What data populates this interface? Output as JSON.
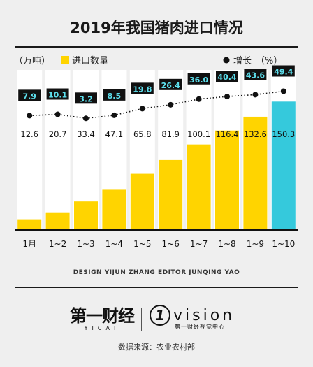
{
  "title": "2019年我国猪肉进口情况",
  "chart_data": {
    "type": "bar",
    "categories": [
      "1月",
      "1~2",
      "1~3",
      "1~4",
      "1~5",
      "1~6",
      "1~7",
      "1~8",
      "1~9",
      "1~10"
    ],
    "series": [
      {
        "name": "进口数量",
        "values": [
          12.6,
          20.7,
          33.4,
          47.1,
          65.8,
          81.9,
          100.1,
          116.4,
          132.6,
          150.3
        ],
        "unit": "（万吨）"
      },
      {
        "name": "增长",
        "values": [
          7.9,
          10.1,
          3.2,
          8.5,
          19.8,
          26.4,
          36.0,
          40.4,
          43.6,
          49.4
        ],
        "unit": "（%）"
      }
    ],
    "value_labels": [
      "12.6",
      "20.7",
      "33.4",
      "47.1",
      "65.8",
      "81.9",
      "100.1",
      "116.4",
      "132.6",
      "150.3"
    ],
    "growth_labels": [
      "7.9",
      "10.1",
      "3.2",
      "8.5",
      "19.8",
      "26.4",
      "36.0",
      "40.4",
      "43.6",
      "49.4"
    ],
    "legend_left": {
      "unit": "（万吨）",
      "label": "进口数量"
    },
    "legend_right": {
      "label": "增长",
      "unit": "（%）"
    },
    "highlight_index": 9,
    "colors": {
      "bar": "#ffd400",
      "bar_highlight": "#35c9dc",
      "label_box": "#111111",
      "label_text": "#5de0ee",
      "dot": "#111111",
      "column_bg": "#ffffff"
    }
  },
  "footer": {
    "credit": "DESIGN YIJUN ZHANG     EDITOR JUNQING YAO",
    "brand_left_main": "第一财经",
    "brand_left_sub": "YICAI",
    "brand_right_mark": "1",
    "brand_right_word": "vision",
    "brand_right_sub": "第一财经视觉中心",
    "source": "数据来源：农业农村部"
  }
}
